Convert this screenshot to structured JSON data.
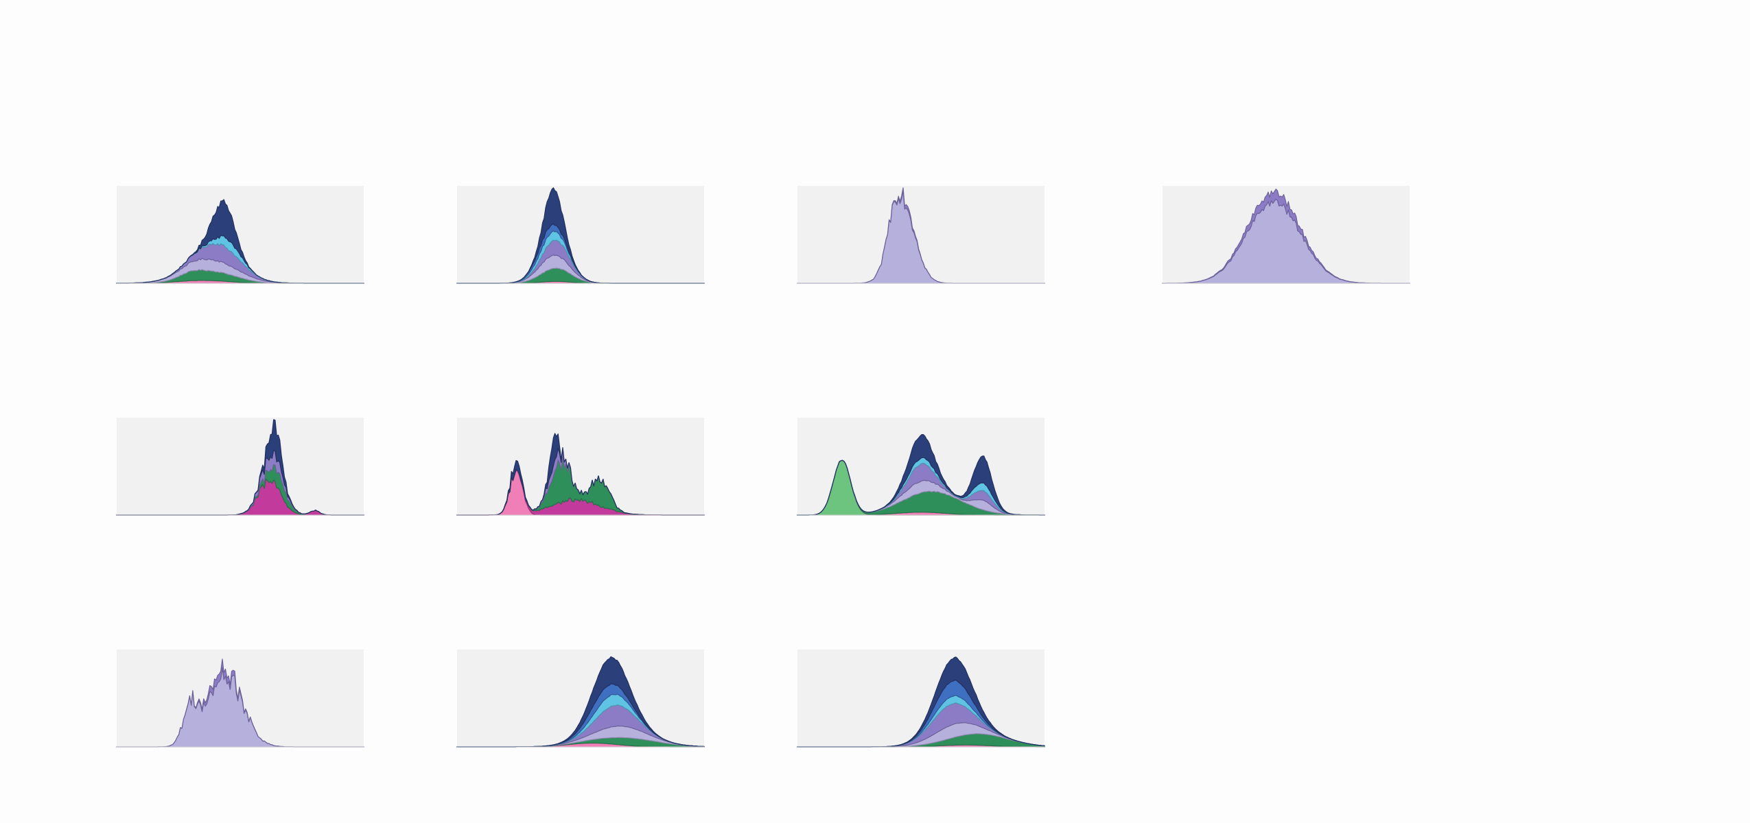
{
  "page": {
    "background": "#fdfdfd",
    "panel_background": "#f1f1f1"
  },
  "palette": {
    "pink": "#f07fb8",
    "magenta": "#c23a9b",
    "light-green": "#6cc47e",
    "green": "#2f8f5b",
    "lilac": "#b5b0dc",
    "purple": "#8c7cc6",
    "sky": "#5fc3e4",
    "blue": "#3f6fc0",
    "navy": "#2b3f7a"
  },
  "chart_data": [
    {
      "type": "area",
      "stacked": true,
      "grid": false,
      "axes": false,
      "ylim": [
        0,
        1
      ],
      "x_range": [
        0,
        1
      ],
      "layers": [
        {
          "color": "pink",
          "peaks": [
            {
              "center": 0.35,
              "height": 0.03,
              "width": 0.1
            }
          ]
        },
        {
          "color": "green",
          "peaks": [
            {
              "center": 0.4,
              "height": 0.09,
              "width": 0.09
            },
            {
              "center": 0.3,
              "height": 0.05,
              "width": 0.05
            }
          ]
        },
        {
          "color": "lilac",
          "peaks": [
            {
              "center": 0.38,
              "height": 0.12,
              "width": 0.11
            }
          ]
        },
        {
          "color": "purple",
          "peaks": [
            {
              "center": 0.42,
              "height": 0.18,
              "width": 0.08
            }
          ]
        },
        {
          "color": "sky",
          "peaks": [
            {
              "center": 0.45,
              "height": 0.1,
              "width": 0.05
            }
          ]
        },
        {
          "color": "navy",
          "peaks": [
            {
              "center": 0.42,
              "height": 0.3,
              "width": 0.04
            },
            {
              "center": 0.46,
              "height": 0.12,
              "width": 0.03
            }
          ]
        }
      ],
      "noise": 0.04
    },
    {
      "type": "area",
      "stacked": true,
      "grid": false,
      "axes": false,
      "ylim": [
        0,
        1
      ],
      "x_range": [
        0,
        1
      ],
      "layers": [
        {
          "color": "pink",
          "peaks": [
            {
              "center": 0.4,
              "height": 0.02,
              "width": 0.06
            }
          ]
        },
        {
          "color": "green",
          "peaks": [
            {
              "center": 0.4,
              "height": 0.14,
              "width": 0.06
            }
          ]
        },
        {
          "color": "lilac",
          "peaks": [
            {
              "center": 0.39,
              "height": 0.14,
              "width": 0.06
            }
          ]
        },
        {
          "color": "purple",
          "peaks": [
            {
              "center": 0.4,
              "height": 0.16,
              "width": 0.05
            }
          ]
        },
        {
          "color": "sky",
          "peaks": [
            {
              "center": 0.38,
              "height": 0.1,
              "width": 0.05
            }
          ]
        },
        {
          "color": "blue",
          "peaks": [
            {
              "center": 0.37,
              "height": 0.08,
              "width": 0.05
            }
          ]
        },
        {
          "color": "navy",
          "peaks": [
            {
              "center": 0.39,
              "height": 0.38,
              "width": 0.035
            }
          ]
        }
      ],
      "noise": 0.03
    },
    {
      "type": "area",
      "stacked": true,
      "grid": false,
      "axes": false,
      "ylim": [
        0,
        1
      ],
      "x_range": [
        0,
        1
      ],
      "layers": [
        {
          "color": "lilac",
          "peaks": [
            {
              "center": 0.43,
              "height": 0.82,
              "width": 0.05
            },
            {
              "center": 0.39,
              "height": 0.3,
              "width": 0.03
            }
          ]
        },
        {
          "color": "purple",
          "peaks": [
            {
              "center": 0.44,
              "height": 0.04,
              "width": 0.03
            }
          ]
        }
      ],
      "noise": 0.12
    },
    {
      "type": "area",
      "stacked": true,
      "grid": false,
      "axes": false,
      "ylim": [
        0,
        1
      ],
      "x_range": [
        0,
        1
      ],
      "layers": [
        {
          "color": "lilac",
          "peaks": [
            {
              "center": 0.45,
              "height": 0.85,
              "width": 0.11
            }
          ]
        },
        {
          "color": "purple",
          "peaks": [
            {
              "center": 0.45,
              "height": 0.1,
              "width": 0.1
            }
          ]
        }
      ],
      "noise": 0.05
    },
    {
      "type": "area",
      "stacked": true,
      "grid": false,
      "axes": false,
      "ylim": [
        0,
        1
      ],
      "x_range": [
        0,
        1
      ],
      "layers": [
        {
          "color": "magenta",
          "peaks": [
            {
              "center": 0.62,
              "height": 0.36,
              "width": 0.045
            },
            {
              "center": 0.8,
              "height": 0.05,
              "width": 0.02
            }
          ]
        },
        {
          "color": "green",
          "peaks": [
            {
              "center": 0.65,
              "height": 0.16,
              "width": 0.04
            }
          ]
        },
        {
          "color": "purple",
          "peaks": [
            {
              "center": 0.63,
              "height": 0.14,
              "width": 0.04
            }
          ]
        },
        {
          "color": "navy",
          "peaks": [
            {
              "center": 0.64,
              "height": 0.3,
              "width": 0.025
            }
          ]
        }
      ],
      "noise": 0.2
    },
    {
      "type": "area",
      "stacked": true,
      "grid": false,
      "axes": false,
      "ylim": [
        0,
        1
      ],
      "x_range": [
        0,
        1
      ],
      "layers": [
        {
          "color": "pink",
          "peaks": [
            {
              "center": 0.24,
              "height": 0.48,
              "width": 0.025
            }
          ]
        },
        {
          "color": "magenta",
          "peaks": [
            {
              "center": 0.48,
              "height": 0.16,
              "width": 0.1
            }
          ]
        },
        {
          "color": "green",
          "peaks": [
            {
              "center": 0.42,
              "height": 0.42,
              "width": 0.04
            },
            {
              "center": 0.58,
              "height": 0.3,
              "width": 0.035
            }
          ]
        },
        {
          "color": "purple",
          "peaks": [
            {
              "center": 0.4,
              "height": 0.12,
              "width": 0.03
            }
          ]
        },
        {
          "color": "navy",
          "peaks": [
            {
              "center": 0.39,
              "height": 0.3,
              "width": 0.015
            },
            {
              "center": 0.24,
              "height": 0.1,
              "width": 0.02
            }
          ]
        }
      ],
      "noise": 0.15
    },
    {
      "type": "area",
      "stacked": true,
      "grid": false,
      "axes": false,
      "ylim": [
        0,
        1
      ],
      "x_range": [
        0,
        1
      ],
      "layers": [
        {
          "color": "light-green",
          "peaks": [
            {
              "center": 0.18,
              "height": 0.58,
              "width": 0.035
            }
          ]
        },
        {
          "color": "pink",
          "peaks": [
            {
              "center": 0.5,
              "height": 0.03,
              "width": 0.1
            }
          ]
        },
        {
          "color": "green",
          "peaks": [
            {
              "center": 0.55,
              "height": 0.22,
              "width": 0.12
            }
          ]
        },
        {
          "color": "lilac",
          "peaks": [
            {
              "center": 0.5,
              "height": 0.12,
              "width": 0.07
            },
            {
              "center": 0.75,
              "height": 0.1,
              "width": 0.04
            }
          ]
        },
        {
          "color": "purple",
          "peaks": [
            {
              "center": 0.5,
              "height": 0.18,
              "width": 0.05
            },
            {
              "center": 0.75,
              "height": 0.1,
              "width": 0.04
            }
          ]
        },
        {
          "color": "sky",
          "peaks": [
            {
              "center": 0.5,
              "height": 0.06,
              "width": 0.06
            },
            {
              "center": 0.75,
              "height": 0.08,
              "width": 0.04
            }
          ]
        },
        {
          "color": "navy",
          "peaks": [
            {
              "center": 0.5,
              "height": 0.24,
              "width": 0.05
            },
            {
              "center": 0.75,
              "height": 0.28,
              "width": 0.035
            }
          ]
        }
      ],
      "noise": 0.02
    },
    {
      "type": "area",
      "stacked": true,
      "grid": false,
      "axes": false,
      "ylim": [
        0,
        1
      ],
      "x_range": [
        0,
        1
      ],
      "layers": [
        {
          "color": "lilac",
          "peaks": [
            {
              "center": 0.44,
              "height": 0.74,
              "width": 0.07
            },
            {
              "center": 0.3,
              "height": 0.4,
              "width": 0.03
            }
          ]
        },
        {
          "color": "purple",
          "peaks": [
            {
              "center": 0.42,
              "height": 0.08,
              "width": 0.05
            }
          ]
        }
      ],
      "noise": 0.18
    },
    {
      "type": "area",
      "stacked": true,
      "grid": false,
      "axes": false,
      "ylim": [
        0,
        1
      ],
      "x_range": [
        0,
        1
      ],
      "layers": [
        {
          "color": "pink",
          "peaks": [
            {
              "center": 0.55,
              "height": 0.04,
              "width": 0.1
            }
          ]
        },
        {
          "color": "green",
          "peaks": [
            {
              "center": 0.7,
              "height": 0.08,
              "width": 0.12
            }
          ]
        },
        {
          "color": "lilac",
          "peaks": [
            {
              "center": 0.66,
              "height": 0.12,
              "width": 0.1
            }
          ]
        },
        {
          "color": "purple",
          "peaks": [
            {
              "center": 0.64,
              "height": 0.22,
              "width": 0.08
            }
          ]
        },
        {
          "color": "sky",
          "peaks": [
            {
              "center": 0.62,
              "height": 0.12,
              "width": 0.07
            }
          ]
        },
        {
          "color": "blue",
          "peaks": [
            {
              "center": 0.6,
              "height": 0.12,
              "width": 0.07
            }
          ]
        },
        {
          "color": "navy",
          "peaks": [
            {
              "center": 0.62,
              "height": 0.28,
              "width": 0.07
            }
          ]
        }
      ],
      "noise": 0.01
    },
    {
      "type": "area",
      "stacked": true,
      "grid": false,
      "axes": false,
      "ylim": [
        0,
        1
      ],
      "x_range": [
        0,
        1
      ],
      "layers": [
        {
          "color": "pink",
          "peaks": [
            {
              "center": 0.68,
              "height": 0.02,
              "width": 0.1
            }
          ]
        },
        {
          "color": "green",
          "peaks": [
            {
              "center": 0.74,
              "height": 0.12,
              "width": 0.12
            }
          ]
        },
        {
          "color": "lilac",
          "peaks": [
            {
              "center": 0.64,
              "height": 0.14,
              "width": 0.09
            }
          ]
        },
        {
          "color": "purple",
          "peaks": [
            {
              "center": 0.62,
              "height": 0.22,
              "width": 0.08
            }
          ]
        },
        {
          "color": "sky",
          "peaks": [
            {
              "center": 0.63,
              "height": 0.08,
              "width": 0.07
            }
          ]
        },
        {
          "color": "blue",
          "peaks": [
            {
              "center": 0.63,
              "height": 0.16,
              "width": 0.07
            }
          ]
        },
        {
          "color": "navy",
          "peaks": [
            {
              "center": 0.64,
              "height": 0.24,
              "width": 0.07
            }
          ]
        }
      ],
      "noise": 0.01
    }
  ]
}
